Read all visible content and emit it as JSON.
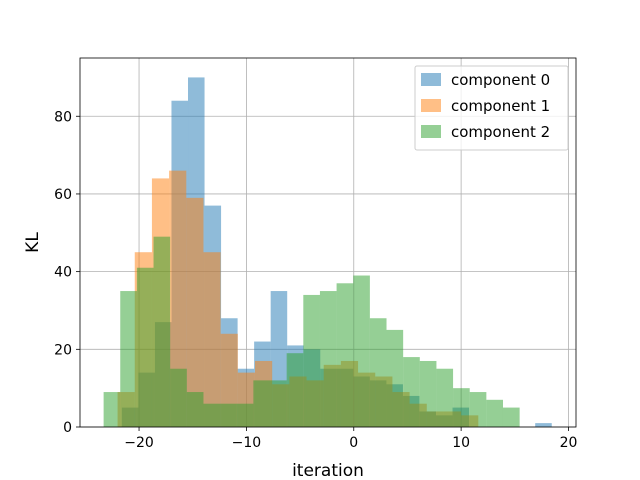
{
  "chart_data": {
    "type": "bar",
    "subtype": "overlaid-histogram",
    "xlabel": "iteration",
    "ylabel": "KL",
    "xlim": [
      -25.5,
      20.7
    ],
    "ylim": [
      0,
      95
    ],
    "xticks": [
      -20,
      -10,
      0,
      10,
      20
    ],
    "xtick_labels": [
      "−20",
      "−10",
      "0",
      "10",
      "20"
    ],
    "yticks": [
      0,
      20,
      40,
      60,
      80
    ],
    "grid": true,
    "legend_position": "top-right",
    "series": [
      {
        "name": "component 0",
        "color": "#1f77b4",
        "alpha": 0.5,
        "bin_edges": [
          -21.6,
          -20.06,
          -18.52,
          -16.98,
          -15.44,
          -13.9,
          -12.36,
          -10.82,
          -9.28,
          -7.74,
          -6.2,
          -4.66,
          -3.12,
          -1.58,
          -0.04,
          1.5,
          3.04,
          4.58,
          6.12,
          7.66,
          9.2,
          10.74,
          12.28,
          13.82,
          15.36,
          16.9,
          18.44
        ],
        "counts": [
          5,
          14,
          27,
          84,
          90,
          57,
          28,
          15,
          22,
          35,
          21,
          20,
          15,
          15,
          13,
          12,
          11,
          8,
          4,
          3,
          5,
          0,
          0,
          0,
          0,
          1
        ]
      },
      {
        "name": "component 1",
        "color": "#ff7f0e",
        "alpha": 0.5,
        "bin_edges": [
          -22.0,
          -20.4,
          -18.8,
          -17.2,
          -15.6,
          -14.0,
          -12.4,
          -10.8,
          -9.2,
          -7.6,
          -6.0,
          -4.4,
          -2.8,
          -1.2,
          0.4,
          2.0,
          3.6,
          5.2,
          6.8,
          8.4,
          10.0,
          11.6
        ],
        "counts": [
          9,
          45,
          64,
          66,
          59,
          45,
          24,
          14,
          17,
          11,
          13,
          12,
          16,
          17,
          14,
          13,
          9,
          6,
          4,
          4,
          3
        ]
      },
      {
        "name": "component 2",
        "color": "#2ca02c",
        "alpha": 0.5,
        "bin_edges": [
          -23.3,
          -21.75,
          -20.2,
          -18.65,
          -17.1,
          -15.55,
          -14.0,
          -12.45,
          -10.9,
          -9.35,
          -7.8,
          -6.25,
          -4.7,
          -3.15,
          -1.6,
          -0.05,
          1.5,
          3.05,
          4.6,
          6.15,
          7.7,
          9.25,
          10.8,
          12.35,
          13.9,
          15.45
        ],
        "counts": [
          9,
          35,
          41,
          49,
          15,
          9,
          6,
          6,
          6,
          12,
          12,
          19,
          34,
          35,
          37,
          39,
          28,
          25,
          18,
          17,
          15,
          10,
          9,
          7,
          5
        ]
      }
    ]
  }
}
